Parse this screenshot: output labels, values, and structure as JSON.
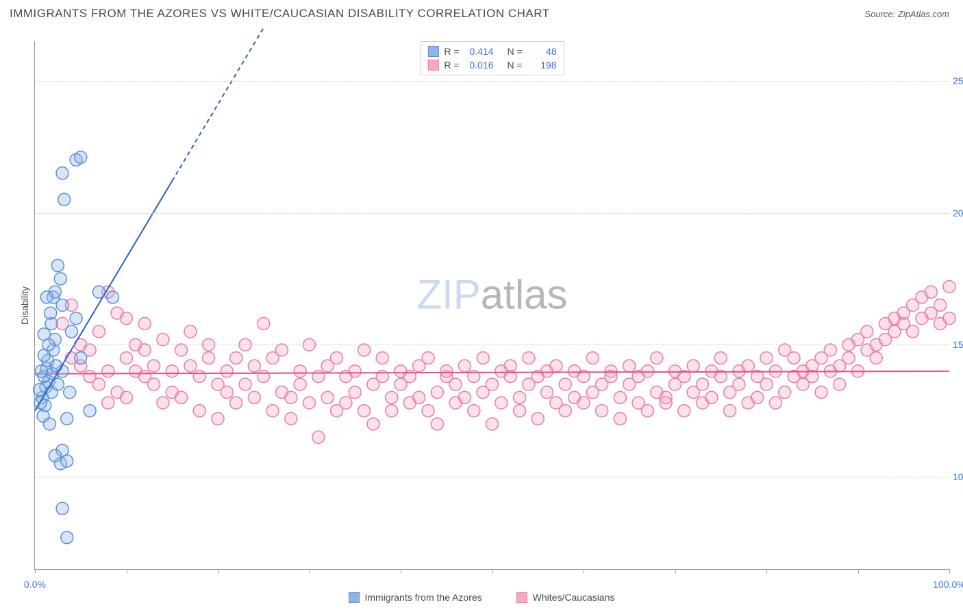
{
  "header": {
    "title": "IMMIGRANTS FROM THE AZORES VS WHITE/CAUCASIAN DISABILITY CORRELATION CHART",
    "source_prefix": "Source: ",
    "source": "ZipAtlas.com"
  },
  "chart": {
    "type": "scatter",
    "ylabel": "Disability",
    "xlim": [
      0,
      100
    ],
    "ylim": [
      6.5,
      26.5
    ],
    "yticks": [
      10.0,
      15.0,
      20.0,
      25.0
    ],
    "ytick_labels": [
      "10.0%",
      "15.0%",
      "20.0%",
      "25.0%"
    ],
    "xtick_positions": [
      0,
      10,
      20,
      30,
      40,
      50,
      60,
      70,
      80,
      90,
      100
    ],
    "xtick_labels": {
      "0": "0.0%",
      "100": "100.0%"
    },
    "background_color": "#ffffff",
    "grid_color": "#cccccc",
    "axis_color": "#999999",
    "marker_radius": 9,
    "marker_stroke_width": 1.5,
    "marker_fill_opacity": 0.35,
    "watermark": {
      "part1": "ZIP",
      "part2": "atlas"
    },
    "series": [
      {
        "name": "Immigrants from the Azores",
        "color_fill": "#8fb4e8",
        "color_stroke": "#5a8fd8",
        "trend": {
          "x1": 0,
          "y1": 12.5,
          "x2_solid": 15,
          "y2_solid": 21.2,
          "x2_dash": 25,
          "y2_dash": 27.0,
          "stroke": "#2e5fc4",
          "width": 2
        },
        "R": "0.414",
        "N": "48",
        "points": [
          [
            1.5,
            13.6
          ],
          [
            1.2,
            13.4
          ],
          [
            1.0,
            13.8
          ],
          [
            1.3,
            14.1
          ],
          [
            1.8,
            13.2
          ],
          [
            0.8,
            13.0
          ],
          [
            1.1,
            12.7
          ],
          [
            1.4,
            14.4
          ],
          [
            2.0,
            14.8
          ],
          [
            2.2,
            15.2
          ],
          [
            0.9,
            12.3
          ],
          [
            1.6,
            12.0
          ],
          [
            2.5,
            13.5
          ],
          [
            3.0,
            14.0
          ],
          [
            3.5,
            12.2
          ],
          [
            2.0,
            16.8
          ],
          [
            2.2,
            17.0
          ],
          [
            3.0,
            16.5
          ],
          [
            4.0,
            15.5
          ],
          [
            4.5,
            16.0
          ],
          [
            2.5,
            18.0
          ],
          [
            3.2,
            20.5
          ],
          [
            3.0,
            21.5
          ],
          [
            4.5,
            22.0
          ],
          [
            5.0,
            22.1
          ],
          [
            2.8,
            10.5
          ],
          [
            3.5,
            10.6
          ],
          [
            3.0,
            11.0
          ],
          [
            2.2,
            10.8
          ],
          [
            6.0,
            12.5
          ],
          [
            7.0,
            17.0
          ],
          [
            8.5,
            16.8
          ],
          [
            3.0,
            8.8
          ],
          [
            3.5,
            7.7
          ],
          [
            1.8,
            15.8
          ],
          [
            1.5,
            15.0
          ],
          [
            1.0,
            14.6
          ],
          [
            0.7,
            14.0
          ],
          [
            0.5,
            13.3
          ],
          [
            0.6,
            12.8
          ],
          [
            1.9,
            13.9
          ],
          [
            2.3,
            14.2
          ],
          [
            1.7,
            16.2
          ],
          [
            1.3,
            16.8
          ],
          [
            1.0,
            15.4
          ],
          [
            2.8,
            17.5
          ],
          [
            3.8,
            13.2
          ],
          [
            5.0,
            14.5
          ]
        ]
      },
      {
        "name": "Whites/Caucasians",
        "color_fill": "#f4aac0",
        "color_stroke": "#ec7ba0",
        "trend": {
          "x1": 0,
          "y1": 13.9,
          "x2_solid": 100,
          "y2_solid": 14.0,
          "stroke": "#e84d87",
          "width": 2
        },
        "R": "0.016",
        "N": "198",
        "points": [
          [
            3,
            15.8
          ],
          [
            4,
            16.5
          ],
          [
            5,
            15.0
          ],
          [
            5,
            14.2
          ],
          [
            6,
            14.8
          ],
          [
            7,
            13.5
          ],
          [
            7,
            15.5
          ],
          [
            8,
            14.0
          ],
          [
            8,
            17.0
          ],
          [
            9,
            13.2
          ],
          [
            9,
            16.2
          ],
          [
            10,
            14.5
          ],
          [
            10,
            13.0
          ],
          [
            11,
            15.0
          ],
          [
            11,
            14.0
          ],
          [
            12,
            13.8
          ],
          [
            12,
            15.8
          ],
          [
            13,
            14.2
          ],
          [
            13,
            13.5
          ],
          [
            14,
            15.2
          ],
          [
            14,
            12.8
          ],
          [
            15,
            14.0
          ],
          [
            15,
            13.2
          ],
          [
            16,
            14.8
          ],
          [
            16,
            13.0
          ],
          [
            17,
            15.5
          ],
          [
            17,
            14.2
          ],
          [
            18,
            13.8
          ],
          [
            18,
            12.5
          ],
          [
            19,
            14.5
          ],
          [
            19,
            15.0
          ],
          [
            20,
            13.5
          ],
          [
            20,
            12.2
          ],
          [
            21,
            14.0
          ],
          [
            21,
            13.2
          ],
          [
            22,
            12.8
          ],
          [
            22,
            14.5
          ],
          [
            23,
            13.5
          ],
          [
            23,
            15.0
          ],
          [
            24,
            13.0
          ],
          [
            24,
            14.2
          ],
          [
            25,
            15.8
          ],
          [
            25,
            13.8
          ],
          [
            26,
            14.5
          ],
          [
            26,
            12.5
          ],
          [
            27,
            13.2
          ],
          [
            27,
            14.8
          ],
          [
            28,
            13.0
          ],
          [
            28,
            12.2
          ],
          [
            29,
            14.0
          ],
          [
            29,
            13.5
          ],
          [
            30,
            12.8
          ],
          [
            30,
            15.0
          ],
          [
            31,
            11.5
          ],
          [
            31,
            13.8
          ],
          [
            32,
            14.2
          ],
          [
            32,
            13.0
          ],
          [
            33,
            12.5
          ],
          [
            33,
            14.5
          ],
          [
            34,
            13.8
          ],
          [
            34,
            12.8
          ],
          [
            35,
            14.0
          ],
          [
            35,
            13.2
          ],
          [
            36,
            12.5
          ],
          [
            36,
            14.8
          ],
          [
            37,
            13.5
          ],
          [
            37,
            12.0
          ],
          [
            38,
            13.8
          ],
          [
            38,
            14.5
          ],
          [
            39,
            13.0
          ],
          [
            39,
            12.5
          ],
          [
            40,
            14.0
          ],
          [
            40,
            13.5
          ],
          [
            41,
            12.8
          ],
          [
            41,
            13.8
          ],
          [
            42,
            14.2
          ],
          [
            42,
            13.0
          ],
          [
            43,
            12.5
          ],
          [
            43,
            14.5
          ],
          [
            44,
            13.2
          ],
          [
            44,
            12.0
          ],
          [
            45,
            13.8
          ],
          [
            45,
            14.0
          ],
          [
            46,
            13.5
          ],
          [
            46,
            12.8
          ],
          [
            47,
            14.2
          ],
          [
            47,
            13.0
          ],
          [
            48,
            12.5
          ],
          [
            48,
            13.8
          ],
          [
            49,
            14.5
          ],
          [
            49,
            13.2
          ],
          [
            50,
            12.0
          ],
          [
            50,
            13.5
          ],
          [
            51,
            14.0
          ],
          [
            51,
            12.8
          ],
          [
            52,
            13.8
          ],
          [
            52,
            14.2
          ],
          [
            53,
            13.0
          ],
          [
            53,
            12.5
          ],
          [
            54,
            13.5
          ],
          [
            54,
            14.5
          ],
          [
            55,
            12.2
          ],
          [
            55,
            13.8
          ],
          [
            56,
            14.0
          ],
          [
            56,
            13.2
          ],
          [
            57,
            12.8
          ],
          [
            57,
            14.2
          ],
          [
            58,
            13.5
          ],
          [
            58,
            12.5
          ],
          [
            59,
            13.0
          ],
          [
            59,
            14.0
          ],
          [
            60,
            13.8
          ],
          [
            60,
            12.8
          ],
          [
            61,
            14.5
          ],
          [
            61,
            13.2
          ],
          [
            62,
            12.5
          ],
          [
            62,
            13.5
          ],
          [
            63,
            14.0
          ],
          [
            63,
            13.8
          ],
          [
            64,
            12.2
          ],
          [
            64,
            13.0
          ],
          [
            65,
            14.2
          ],
          [
            65,
            13.5
          ],
          [
            66,
            12.8
          ],
          [
            66,
            13.8
          ],
          [
            67,
            14.0
          ],
          [
            67,
            12.5
          ],
          [
            68,
            13.2
          ],
          [
            68,
            14.5
          ],
          [
            69,
            13.0
          ],
          [
            69,
            12.8
          ],
          [
            70,
            13.5
          ],
          [
            70,
            14.0
          ],
          [
            71,
            13.8
          ],
          [
            71,
            12.5
          ],
          [
            72,
            14.2
          ],
          [
            72,
            13.2
          ],
          [
            73,
            12.8
          ],
          [
            73,
            13.5
          ],
          [
            74,
            14.0
          ],
          [
            74,
            13.0
          ],
          [
            75,
            13.8
          ],
          [
            75,
            14.5
          ],
          [
            76,
            12.5
          ],
          [
            76,
            13.2
          ],
          [
            77,
            14.0
          ],
          [
            77,
            13.5
          ],
          [
            78,
            12.8
          ],
          [
            78,
            14.2
          ],
          [
            79,
            13.8
          ],
          [
            79,
            13.0
          ],
          [
            80,
            14.5
          ],
          [
            80,
            13.5
          ],
          [
            81,
            12.8
          ],
          [
            81,
            14.0
          ],
          [
            82,
            13.2
          ],
          [
            82,
            14.8
          ],
          [
            83,
            13.8
          ],
          [
            83,
            14.5
          ],
          [
            84,
            13.5
          ],
          [
            84,
            14.0
          ],
          [
            85,
            14.2
          ],
          [
            85,
            13.8
          ],
          [
            86,
            14.5
          ],
          [
            86,
            13.2
          ],
          [
            87,
            14.0
          ],
          [
            87,
            14.8
          ],
          [
            88,
            13.5
          ],
          [
            88,
            14.2
          ],
          [
            89,
            15.0
          ],
          [
            89,
            14.5
          ],
          [
            90,
            14.0
          ],
          [
            90,
            15.2
          ],
          [
            91,
            14.8
          ],
          [
            91,
            15.5
          ],
          [
            92,
            14.5
          ],
          [
            92,
            15.0
          ],
          [
            93,
            15.8
          ],
          [
            93,
            15.2
          ],
          [
            94,
            15.5
          ],
          [
            94,
            16.0
          ],
          [
            95,
            15.8
          ],
          [
            95,
            16.2
          ],
          [
            96,
            15.5
          ],
          [
            96,
            16.5
          ],
          [
            97,
            16.0
          ],
          [
            97,
            16.8
          ],
          [
            98,
            16.2
          ],
          [
            98,
            17.0
          ],
          [
            99,
            16.5
          ],
          [
            99,
            15.8
          ],
          [
            100,
            17.2
          ],
          [
            100,
            16.0
          ],
          [
            4,
            14.5
          ],
          [
            6,
            13.8
          ],
          [
            8,
            12.8
          ],
          [
            10,
            16.0
          ],
          [
            12,
            14.8
          ]
        ]
      }
    ]
  },
  "legend_bottom": [
    {
      "label": "Immigrants from the Azores",
      "fill": "#8fb4e8",
      "stroke": "#5a8fd8"
    },
    {
      "label": "Whites/Caucasians",
      "fill": "#f4aac0",
      "stroke": "#ec7ba0"
    }
  ],
  "legend_top": {
    "rows": [
      {
        "swatch_fill": "#8fb4e8",
        "swatch_stroke": "#5a8fd8",
        "r_label": "R =",
        "r_val": "0.414",
        "n_label": "N =",
        "n_val": "48"
      },
      {
        "swatch_fill": "#f4aac0",
        "swatch_stroke": "#ec7ba0",
        "r_label": "R =",
        "r_val": "0.016",
        "n_label": "N =",
        "n_val": "198"
      }
    ]
  }
}
